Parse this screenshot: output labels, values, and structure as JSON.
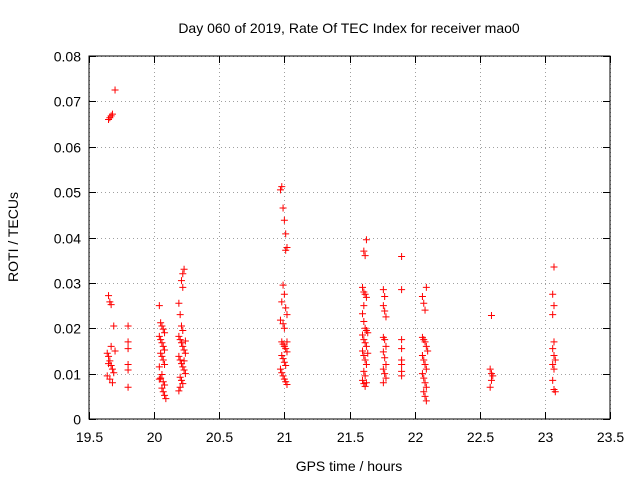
{
  "chart_data": {
    "type": "scatter",
    "title": "Day 060 of 2019, Rate Of TEC Index for receiver mao0",
    "xlabel": "GPS time / hours",
    "ylabel": "ROTI / TECUs",
    "xlim": [
      19.5,
      23.5
    ],
    "ylim": [
      0,
      0.08
    ],
    "xticks": [
      19.5,
      20,
      20.5,
      21,
      21.5,
      22,
      22.5,
      23,
      23.5
    ],
    "xtick_labels": [
      "19.5",
      "20",
      "20.5",
      "21",
      "21.5",
      "22",
      "22.5",
      "23",
      "23.5"
    ],
    "yticks": [
      0,
      0.01,
      0.02,
      0.03,
      0.04,
      0.05,
      0.06,
      0.07,
      0.08
    ],
    "ytick_labels": [
      "0",
      "0.01",
      "0.02",
      "0.03",
      "0.04",
      "0.05",
      "0.06",
      "0.07",
      "0.08"
    ],
    "marker": "+",
    "marker_color": "#ff0000",
    "points": [
      [
        19.65,
        0.066
      ],
      [
        19.66,
        0.0664
      ],
      [
        19.67,
        0.0668
      ],
      [
        19.68,
        0.0672
      ],
      [
        19.7,
        0.0725
      ],
      [
        19.65,
        0.0272
      ],
      [
        19.66,
        0.0258
      ],
      [
        19.67,
        0.0252
      ],
      [
        19.69,
        0.0205
      ],
      [
        19.64,
        0.0145
      ],
      [
        19.65,
        0.0138
      ],
      [
        19.66,
        0.0128
      ],
      [
        19.67,
        0.0118
      ],
      [
        19.68,
        0.011
      ],
      [
        19.69,
        0.0102
      ],
      [
        19.64,
        0.0095
      ],
      [
        19.66,
        0.0088
      ],
      [
        19.68,
        0.008
      ],
      [
        19.7,
        0.015
      ],
      [
        19.67,
        0.016
      ],
      [
        19.65,
        0.0122
      ],
      [
        19.8,
        0.0205
      ],
      [
        19.8,
        0.017
      ],
      [
        19.8,
        0.0155
      ],
      [
        19.8,
        0.012
      ],
      [
        19.8,
        0.0108
      ],
      [
        19.8,
        0.007
      ],
      [
        20.04,
        0.025
      ],
      [
        20.05,
        0.0212
      ],
      [
        20.06,
        0.0205
      ],
      [
        20.07,
        0.0198
      ],
      [
        20.08,
        0.019
      ],
      [
        20.04,
        0.0182
      ],
      [
        20.05,
        0.0175
      ],
      [
        20.06,
        0.0168
      ],
      [
        20.07,
        0.016
      ],
      [
        20.08,
        0.0152
      ],
      [
        20.05,
        0.0145
      ],
      [
        20.06,
        0.0138
      ],
      [
        20.07,
        0.013
      ],
      [
        20.04,
        0.0115
      ],
      [
        20.06,
        0.0098
      ],
      [
        20.05,
        0.009
      ],
      [
        20.07,
        0.0082
      ],
      [
        20.08,
        0.0075
      ],
      [
        20.06,
        0.0068
      ],
      [
        20.07,
        0.006
      ],
      [
        20.08,
        0.0052
      ],
      [
        20.09,
        0.0045
      ],
      [
        20.04,
        0.0088
      ],
      [
        20.08,
        0.012
      ],
      [
        20.19,
        0.0255
      ],
      [
        20.2,
        0.023
      ],
      [
        20.21,
        0.0205
      ],
      [
        20.22,
        0.0195
      ],
      [
        20.23,
        0.033
      ],
      [
        20.22,
        0.032
      ],
      [
        20.21,
        0.0305
      ],
      [
        20.22,
        0.029
      ],
      [
        20.19,
        0.0182
      ],
      [
        20.2,
        0.0175
      ],
      [
        20.21,
        0.0168
      ],
      [
        20.22,
        0.016
      ],
      [
        20.23,
        0.0152
      ],
      [
        20.24,
        0.0145
      ],
      [
        20.19,
        0.0138
      ],
      [
        20.2,
        0.013
      ],
      [
        20.21,
        0.0122
      ],
      [
        20.22,
        0.0115
      ],
      [
        20.23,
        0.0108
      ],
      [
        20.24,
        0.01
      ],
      [
        20.2,
        0.0092
      ],
      [
        20.21,
        0.0085
      ],
      [
        20.22,
        0.0078
      ],
      [
        20.2,
        0.007
      ],
      [
        20.19,
        0.0062
      ],
      [
        20.24,
        0.0172
      ],
      [
        20.23,
        0.0128
      ],
      [
        20.97,
        0.0505
      ],
      [
        20.98,
        0.0512
      ],
      [
        20.99,
        0.0465
      ],
      [
        21.0,
        0.0438
      ],
      [
        21.01,
        0.0408
      ],
      [
        21.02,
        0.0378
      ],
      [
        21.01,
        0.0372
      ],
      [
        20.99,
        0.0295
      ],
      [
        21.0,
        0.0275
      ],
      [
        20.98,
        0.0258
      ],
      [
        21.01,
        0.0245
      ],
      [
        21.02,
        0.023
      ],
      [
        20.97,
        0.0218
      ],
      [
        20.99,
        0.021
      ],
      [
        21.0,
        0.02
      ],
      [
        20.98,
        0.017
      ],
      [
        20.99,
        0.0165
      ],
      [
        21.0,
        0.016
      ],
      [
        21.01,
        0.0155
      ],
      [
        21.02,
        0.0148
      ],
      [
        20.98,
        0.014
      ],
      [
        20.99,
        0.0133
      ],
      [
        21.0,
        0.0125
      ],
      [
        21.01,
        0.0118
      ],
      [
        20.97,
        0.011
      ],
      [
        20.98,
        0.0102
      ],
      [
        20.99,
        0.0095
      ],
      [
        21.0,
        0.0088
      ],
      [
        21.01,
        0.0082
      ],
      [
        21.02,
        0.0076
      ],
      [
        21.02,
        0.017
      ],
      [
        21.61,
        0.037
      ],
      [
        21.62,
        0.036
      ],
      [
        21.63,
        0.0395
      ],
      [
        21.6,
        0.029
      ],
      [
        21.61,
        0.028
      ],
      [
        21.62,
        0.0275
      ],
      [
        21.63,
        0.0268
      ],
      [
        21.61,
        0.025
      ],
      [
        21.6,
        0.0232
      ],
      [
        21.61,
        0.0215
      ],
      [
        21.62,
        0.02
      ],
      [
        21.63,
        0.0195
      ],
      [
        21.6,
        0.0185
      ],
      [
        21.61,
        0.0175
      ],
      [
        21.62,
        0.0168
      ],
      [
        21.63,
        0.016
      ],
      [
        21.6,
        0.015
      ],
      [
        21.61,
        0.014
      ],
      [
        21.62,
        0.013
      ],
      [
        21.63,
        0.012
      ],
      [
        21.61,
        0.0105
      ],
      [
        21.62,
        0.0095
      ],
      [
        21.6,
        0.0085
      ],
      [
        21.61,
        0.0078
      ],
      [
        21.62,
        0.0072
      ],
      [
        21.63,
        0.008
      ],
      [
        21.64,
        0.019
      ],
      [
        21.64,
        0.0145
      ],
      [
        21.76,
        0.0285
      ],
      [
        21.77,
        0.027
      ],
      [
        21.76,
        0.025
      ],
      [
        21.77,
        0.0238
      ],
      [
        21.78,
        0.0225
      ],
      [
        21.76,
        0.018
      ],
      [
        21.77,
        0.0175
      ],
      [
        21.78,
        0.016
      ],
      [
        21.76,
        0.0148
      ],
      [
        21.77,
        0.0135
      ],
      [
        21.78,
        0.012
      ],
      [
        21.76,
        0.011
      ],
      [
        21.77,
        0.01
      ],
      [
        21.78,
        0.009
      ],
      [
        21.76,
        0.008
      ],
      [
        21.9,
        0.0358
      ],
      [
        21.9,
        0.0285
      ],
      [
        21.9,
        0.0175
      ],
      [
        21.9,
        0.0155
      ],
      [
        21.9,
        0.013
      ],
      [
        21.9,
        0.012
      ],
      [
        21.9,
        0.0105
      ],
      [
        21.9,
        0.0095
      ],
      [
        22.06,
        0.027
      ],
      [
        22.07,
        0.0255
      ],
      [
        22.08,
        0.024
      ],
      [
        22.09,
        0.029
      ],
      [
        22.06,
        0.018
      ],
      [
        22.07,
        0.0175
      ],
      [
        22.08,
        0.017
      ],
      [
        22.09,
        0.016
      ],
      [
        22.06,
        0.014
      ],
      [
        22.07,
        0.013
      ],
      [
        22.08,
        0.012
      ],
      [
        22.09,
        0.011
      ],
      [
        22.06,
        0.01
      ],
      [
        22.07,
        0.009
      ],
      [
        22.08,
        0.008
      ],
      [
        22.09,
        0.007
      ],
      [
        22.07,
        0.006
      ],
      [
        22.08,
        0.005
      ],
      [
        22.09,
        0.004
      ],
      [
        22.1,
        0.015
      ],
      [
        22.59,
        0.0228
      ],
      [
        22.58,
        0.011
      ],
      [
        22.59,
        0.01
      ],
      [
        22.6,
        0.0095
      ],
      [
        22.59,
        0.0085
      ],
      [
        22.58,
        0.007
      ],
      [
        23.07,
        0.0335
      ],
      [
        23.06,
        0.0275
      ],
      [
        23.07,
        0.025
      ],
      [
        23.06,
        0.023
      ],
      [
        23.07,
        0.017
      ],
      [
        23.06,
        0.0155
      ],
      [
        23.07,
        0.014
      ],
      [
        23.08,
        0.013
      ],
      [
        23.06,
        0.012
      ],
      [
        23.07,
        0.011
      ],
      [
        23.06,
        0.0085
      ],
      [
        23.07,
        0.0065
      ],
      [
        23.08,
        0.006
      ]
    ]
  }
}
